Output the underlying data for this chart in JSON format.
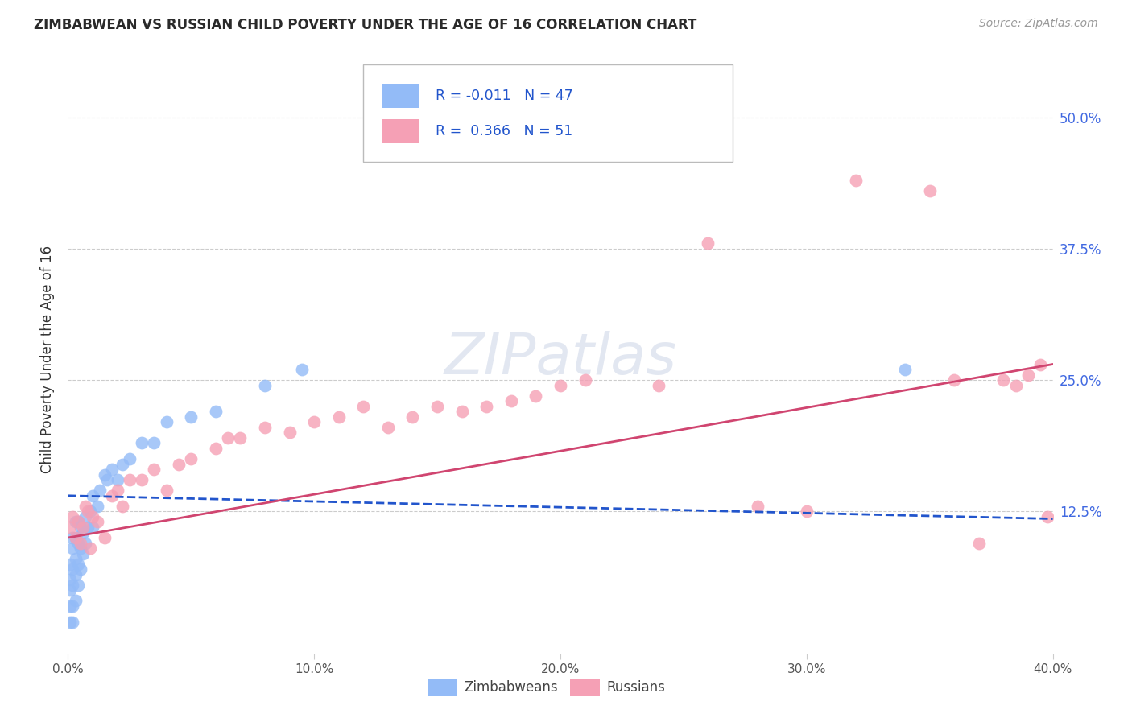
{
  "title": "ZIMBABWEAN VS RUSSIAN CHILD POVERTY UNDER THE AGE OF 16 CORRELATION CHART",
  "source": "Source: ZipAtlas.com",
  "ylabel": "Child Poverty Under the Age of 16",
  "zim_color": "#93bbf7",
  "rus_color": "#f5a0b5",
  "zim_line_color": "#2255cc",
  "rus_line_color": "#d04570",
  "xlim": [
    0.0,
    0.4
  ],
  "ylim": [
    -0.01,
    0.55
  ],
  "yticks": [
    0.125,
    0.25,
    0.375,
    0.5
  ],
  "ytick_labels": [
    "12.5%",
    "25.0%",
    "37.5%",
    "50.0%"
  ],
  "xticks": [
    0.0,
    0.1,
    0.2,
    0.3,
    0.4
  ],
  "xtick_labels": [
    "0.0%",
    "10.0%",
    "20.0%",
    "30.0%",
    "40.0%"
  ],
  "zim_line_x0": 0.0,
  "zim_line_x1": 0.4,
  "zim_line_y0": 0.14,
  "zim_line_y1": 0.118,
  "rus_line_x0": 0.0,
  "rus_line_x1": 0.4,
  "rus_line_y0": 0.1,
  "rus_line_y1": 0.265,
  "zim_x": [
    0.001,
    0.001,
    0.001,
    0.001,
    0.001,
    0.002,
    0.002,
    0.002,
    0.002,
    0.002,
    0.002,
    0.003,
    0.003,
    0.003,
    0.003,
    0.003,
    0.004,
    0.004,
    0.004,
    0.004,
    0.005,
    0.005,
    0.005,
    0.006,
    0.006,
    0.007,
    0.007,
    0.008,
    0.009,
    0.01,
    0.01,
    0.012,
    0.013,
    0.015,
    0.016,
    0.018,
    0.02,
    0.022,
    0.025,
    0.03,
    0.035,
    0.04,
    0.05,
    0.06,
    0.08,
    0.095,
    0.34
  ],
  "zim_y": [
    0.02,
    0.035,
    0.05,
    0.06,
    0.075,
    0.02,
    0.035,
    0.055,
    0.07,
    0.09,
    0.1,
    0.04,
    0.065,
    0.08,
    0.1,
    0.115,
    0.055,
    0.075,
    0.095,
    0.115,
    0.07,
    0.09,
    0.11,
    0.085,
    0.105,
    0.095,
    0.12,
    0.11,
    0.125,
    0.11,
    0.14,
    0.13,
    0.145,
    0.16,
    0.155,
    0.165,
    0.155,
    0.17,
    0.175,
    0.19,
    0.19,
    0.21,
    0.215,
    0.22,
    0.245,
    0.26,
    0.26
  ],
  "rus_x": [
    0.001,
    0.002,
    0.003,
    0.004,
    0.005,
    0.006,
    0.007,
    0.008,
    0.009,
    0.01,
    0.012,
    0.015,
    0.018,
    0.02,
    0.022,
    0.025,
    0.03,
    0.035,
    0.04,
    0.045,
    0.05,
    0.06,
    0.065,
    0.07,
    0.08,
    0.09,
    0.1,
    0.11,
    0.12,
    0.13,
    0.14,
    0.15,
    0.16,
    0.17,
    0.18,
    0.19,
    0.2,
    0.21,
    0.24,
    0.26,
    0.28,
    0.3,
    0.32,
    0.35,
    0.36,
    0.37,
    0.38,
    0.385,
    0.39,
    0.395,
    0.398
  ],
  "rus_y": [
    0.11,
    0.12,
    0.1,
    0.115,
    0.095,
    0.11,
    0.13,
    0.125,
    0.09,
    0.12,
    0.115,
    0.1,
    0.14,
    0.145,
    0.13,
    0.155,
    0.155,
    0.165,
    0.145,
    0.17,
    0.175,
    0.185,
    0.195,
    0.195,
    0.205,
    0.2,
    0.21,
    0.215,
    0.225,
    0.205,
    0.215,
    0.225,
    0.22,
    0.225,
    0.23,
    0.235,
    0.245,
    0.25,
    0.245,
    0.38,
    0.13,
    0.125,
    0.44,
    0.43,
    0.25,
    0.095,
    0.25,
    0.245,
    0.255,
    0.265,
    0.12
  ],
  "watermark_text": "ZIPatlas"
}
